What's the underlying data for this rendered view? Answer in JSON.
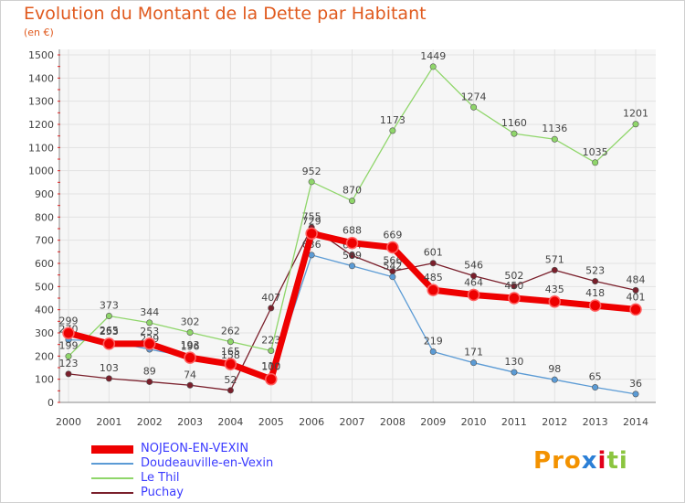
{
  "page": {
    "title": "Evolution du Montant de la Dette par Habitant",
    "subtitle": "(en €)",
    "logo": {
      "letters": [
        "P",
        "r",
        "o",
        "x",
        "i",
        "t",
        "i"
      ],
      "colors": [
        "#f39200",
        "#f39200",
        "#f39200",
        "#2b7fd6",
        "#e2001a",
        "#8bc53f",
        "#8bc53f"
      ]
    }
  },
  "chart_data": {
    "type": "line",
    "x": [
      2000,
      2001,
      2002,
      2003,
      2004,
      2005,
      2006,
      2007,
      2008,
      2009,
      2010,
      2011,
      2012,
      2013,
      2014
    ],
    "ylim": [
      0,
      1500
    ],
    "yticks": [
      0,
      100,
      200,
      300,
      400,
      500,
      600,
      700,
      800,
      900,
      1000,
      1100,
      1200,
      1300,
      1400,
      1500
    ],
    "grid": true,
    "legend_position": "bottom-left",
    "series": [
      {
        "name": "Puchay",
        "color": "#7a1f2b",
        "values": [
          123,
          103,
          89,
          74,
          52,
          407,
          755,
          634,
          566,
          601,
          546,
          502,
          571,
          523,
          484
        ]
      },
      {
        "name": "Doudeauville-en-Vexin",
        "color": "#5b9bd5",
        "values": [
          270,
          265,
          229,
          196,
          158,
          110,
          636,
          589,
          542,
          219,
          171,
          130,
          98,
          65,
          36
        ]
      },
      {
        "name": "Le Thil",
        "color": "#8fd66a",
        "values": [
          199,
          373,
          344,
          302,
          262,
          223,
          952,
          870,
          1173,
          1449,
          1274,
          1160,
          1136,
          1035,
          1201
        ]
      },
      {
        "name": "NOJEON-EN-VEXIN",
        "color": "#ee0000",
        "values": [
          299,
          253,
          253,
          193,
          165,
          100,
          729,
          688,
          669,
          485,
          464,
          450,
          435,
          418,
          401
        ]
      }
    ],
    "legend_order": [
      "NOJEON-EN-VEXIN",
      "Doudeauville-en-Vexin",
      "Le Thil",
      "Puchay"
    ]
  }
}
